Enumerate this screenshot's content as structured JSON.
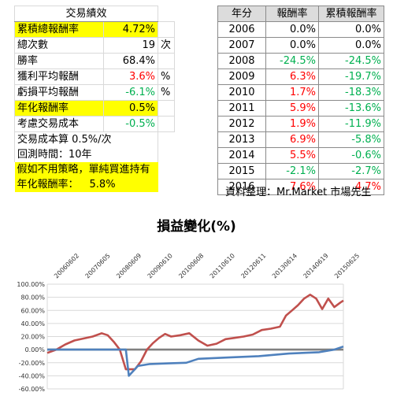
{
  "performance": {
    "title": "交易績效",
    "rows": [
      {
        "label": "累積總報酬率",
        "value": "4.72%",
        "unit": "",
        "highlight": true,
        "color": ""
      },
      {
        "label": "總次數",
        "value": "19",
        "unit": "次",
        "highlight": false,
        "color": ""
      },
      {
        "label": "勝率",
        "value": "68.4%",
        "unit": "",
        "highlight": false,
        "color": ""
      },
      {
        "label": "獲利平均報酬",
        "value": "3.6%",
        "unit": "%",
        "highlight": false,
        "color": "red"
      },
      {
        "label": "虧損平均報酬",
        "value": "-6.1%",
        "unit": "%",
        "highlight": false,
        "color": "green"
      },
      {
        "label": "年化報酬率",
        "value": "0.5%",
        "unit": "",
        "highlight": true,
        "color": ""
      },
      {
        "label": "考慮交易成本",
        "value": "-0.5%",
        "unit": "",
        "highlight": false,
        "color": "green"
      }
    ],
    "cost_note": "交易成本算 0.5%/次",
    "backtest_note": "回測時間：10年",
    "buyhold_line1": "假如不用策略，單純買進持有",
    "buyhold_label": "年化報酬率：",
    "buyhold_value": "5.8%"
  },
  "yearly": {
    "headers": [
      "年分",
      "報酬率",
      "累積報酬率"
    ],
    "rows": [
      {
        "year": "2006",
        "ret": "0.0%",
        "cum": "0.0%",
        "ret_color": "",
        "cum_color": ""
      },
      {
        "year": "2007",
        "ret": "0.0%",
        "cum": "0.0%",
        "ret_color": "",
        "cum_color": ""
      },
      {
        "year": "2008",
        "ret": "-24.5%",
        "cum": "-24.5%",
        "ret_color": "green",
        "cum_color": "green"
      },
      {
        "year": "2009",
        "ret": "6.3%",
        "cum": "-19.7%",
        "ret_color": "red",
        "cum_color": "green"
      },
      {
        "year": "2010",
        "ret": "1.7%",
        "cum": "-18.3%",
        "ret_color": "red",
        "cum_color": "green"
      },
      {
        "year": "2011",
        "ret": "5.9%",
        "cum": "-13.6%",
        "ret_color": "red",
        "cum_color": "green"
      },
      {
        "year": "2012",
        "ret": "1.9%",
        "cum": "-11.9%",
        "ret_color": "red",
        "cum_color": "green"
      },
      {
        "year": "2013",
        "ret": "6.9%",
        "cum": "-5.8%",
        "ret_color": "red",
        "cum_color": "green"
      },
      {
        "year": "2014",
        "ret": "5.5%",
        "cum": "-0.6%",
        "ret_color": "red",
        "cum_color": "green"
      },
      {
        "year": "2015",
        "ret": "-2.1%",
        "cum": "-2.7%",
        "ret_color": "green",
        "cum_color": "green"
      },
      {
        "year": "2016",
        "ret": "7.6%",
        "cum": "4.7%",
        "ret_color": "red",
        "cum_color": "red"
      }
    ],
    "source": "資料整理：Mr.Market 市場先生"
  },
  "colors": {
    "highlight": "#ffff00",
    "positive": "#ff0000",
    "negative": "#00b050",
    "strategy_line": "#4f81bd",
    "buyhold_line": "#c0504d",
    "zero_line": "#808080"
  },
  "chart_data": {
    "type": "line",
    "title": "損益變化(%)",
    "xlabel": "",
    "ylabel": "",
    "ylim": [
      -60,
      100
    ],
    "yticks": [
      "100.00%",
      "80.00%",
      "60.00%",
      "40.00%",
      "20.00%",
      "0.00%",
      "-20.00%",
      "-40.00%",
      "-60.00%"
    ],
    "xticks": [
      "20060602",
      "20070605",
      "20080609",
      "20090610",
      "20100608",
      "20110610",
      "20120611",
      "20130614",
      "20140619",
      "20150625"
    ],
    "grid": true,
    "series": [
      {
        "color": "#c0504d",
        "x": [
          0,
          0.3,
          0.6,
          0.9,
          1.2,
          1.5,
          1.8,
          2.0,
          2.2,
          2.4,
          2.6,
          2.9,
          3.1,
          3.3,
          3.5,
          3.7,
          3.9,
          4.1,
          4.4,
          4.7,
          5.0,
          5.3,
          5.6,
          5.9,
          6.2,
          6.5,
          6.8,
          7.1,
          7.4,
          7.7,
          7.9,
          8.1,
          8.3,
          8.5,
          8.7,
          8.9,
          9.1,
          9.3,
          9.5,
          9.7,
          9.8
        ],
        "y": [
          -5,
          0,
          8,
          14,
          17,
          20,
          25,
          22,
          12,
          0,
          -30,
          -30,
          -18,
          0,
          10,
          18,
          24,
          20,
          22,
          25,
          14,
          6,
          9,
          16,
          18,
          20,
          23,
          30,
          32,
          35,
          52,
          60,
          68,
          78,
          84,
          78,
          62,
          78,
          65,
          72,
          75
        ]
      },
      {
        "color": "#4f81bd",
        "x": [
          0,
          1.0,
          2.0,
          2.6,
          2.7,
          3.0,
          3.4,
          4.0,
          4.6,
          5.0,
          6.0,
          7.0,
          8.0,
          9.0,
          9.5,
          9.8
        ],
        "y": [
          0,
          0,
          0,
          0,
          -40,
          -25,
          -22,
          -21,
          -20,
          -14,
          -12,
          -10,
          -6,
          -4,
          0,
          4.7
        ]
      },
      {
        "color": "#808080",
        "x": [
          0,
          9.8
        ],
        "y": [
          0,
          0
        ]
      }
    ]
  }
}
